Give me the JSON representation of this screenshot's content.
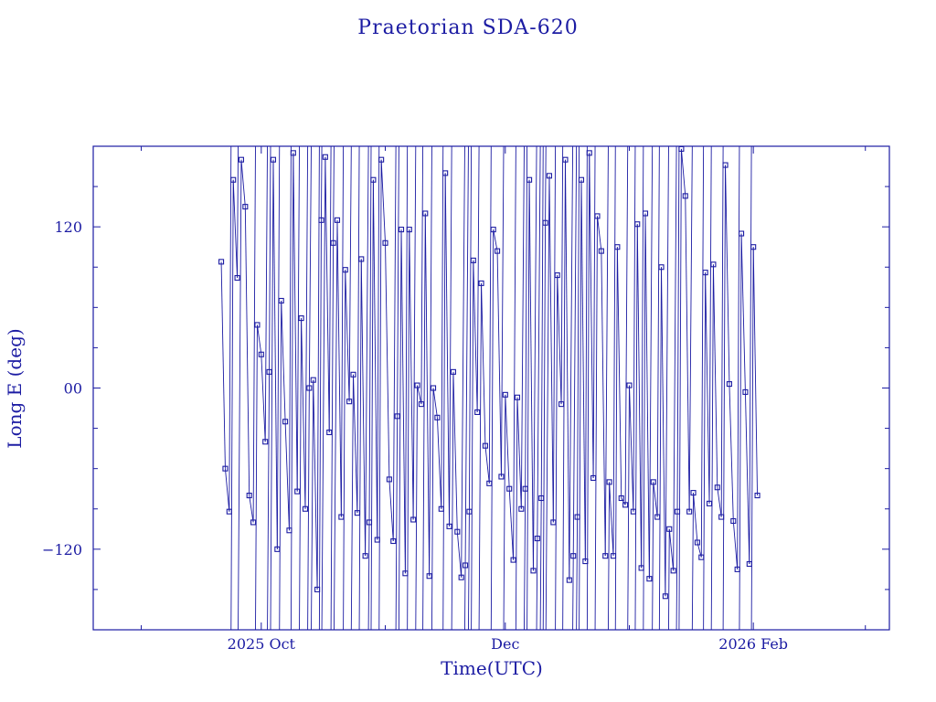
{
  "chart_data": {
    "type": "scatter",
    "title": "Praetorian SDA-620",
    "xlabel": "Time(UTC)",
    "ylabel": "Long E (deg)",
    "x_type": "date",
    "xlim": [
      "2025-08-20",
      "2026-03-07"
    ],
    "ylim": [
      -180,
      180
    ],
    "x_tick_labels": [
      {
        "date": "2025-10-01",
        "label": "2025 Oct"
      },
      {
        "date": "2025-12-01",
        "label": "Dec"
      },
      {
        "date": "2026-02-01",
        "label": "2026 Feb"
      }
    ],
    "x_minor_ticks": [
      "2025-09-01",
      "2025-11-01",
      "2026-01-01",
      "2026-03-01"
    ],
    "y_major_ticks": [
      {
        "value": 120,
        "label": "120"
      },
      {
        "value": 0,
        "label": "00"
      },
      {
        "value": -120,
        "label": "−120"
      }
    ],
    "y_minor_ticks": [
      150,
      90,
      60,
      30,
      -30,
      -60,
      -90,
      -150
    ],
    "grid": false,
    "marker": "square",
    "connected": true,
    "series": [
      {
        "x": [
          "2025-09-21",
          "2025-09-22",
          "2025-09-23",
          "2025-09-24",
          "2025-09-25",
          "2025-09-26",
          "2025-09-27",
          "2025-09-28",
          "2025-09-29",
          "2025-09-30",
          "2025-10-01",
          "2025-10-02",
          "2025-10-03",
          "2025-10-04",
          "2025-10-05",
          "2025-10-06",
          "2025-10-07",
          "2025-10-08",
          "2025-10-09",
          "2025-10-10",
          "2025-10-11",
          "2025-10-12",
          "2025-10-13",
          "2025-10-14",
          "2025-10-15",
          "2025-10-16",
          "2025-10-17",
          "2025-10-18",
          "2025-10-19",
          "2025-10-20",
          "2025-10-21",
          "2025-10-22",
          "2025-10-23",
          "2025-10-24",
          "2025-10-25",
          "2025-10-26",
          "2025-10-27",
          "2025-10-28",
          "2025-10-29",
          "2025-10-30",
          "2025-10-31",
          "2025-11-01",
          "2025-11-02",
          "2025-11-03",
          "2025-11-04",
          "2025-11-05",
          "2025-11-06",
          "2025-11-07",
          "2025-11-08",
          "2025-11-09",
          "2025-11-10",
          "2025-11-11",
          "2025-11-12",
          "2025-11-13",
          "2025-11-14",
          "2025-11-15",
          "2025-11-16",
          "2025-11-17",
          "2025-11-18",
          "2025-11-19",
          "2025-11-20",
          "2025-11-21",
          "2025-11-22",
          "2025-11-23",
          "2025-11-24",
          "2025-11-25",
          "2025-11-26",
          "2025-11-27",
          "2025-11-28",
          "2025-11-29",
          "2025-11-30",
          "2025-12-01",
          "2025-12-02",
          "2025-12-03",
          "2025-12-04",
          "2025-12-05",
          "2025-12-06",
          "2025-12-07",
          "2025-12-08",
          "2025-12-09",
          "2025-12-10",
          "2025-12-11",
          "2025-12-12",
          "2025-12-13",
          "2025-12-14",
          "2025-12-15",
          "2025-12-16",
          "2025-12-17",
          "2025-12-18",
          "2025-12-19",
          "2025-12-20",
          "2025-12-21",
          "2025-12-22",
          "2025-12-23",
          "2025-12-24",
          "2025-12-25",
          "2025-12-26",
          "2025-12-27",
          "2025-12-28",
          "2025-12-29",
          "2025-12-30",
          "2025-12-31",
          "2026-01-01",
          "2026-01-02",
          "2026-01-03",
          "2026-01-04",
          "2026-01-05",
          "2026-01-06",
          "2026-01-07",
          "2026-01-08",
          "2026-01-09",
          "2026-01-10",
          "2026-01-11",
          "2026-01-12",
          "2026-01-13",
          "2026-01-14",
          "2026-01-15",
          "2026-01-16",
          "2026-01-17",
          "2026-01-18",
          "2026-01-19",
          "2026-01-20",
          "2026-01-21",
          "2026-01-22",
          "2026-01-23",
          "2026-01-24",
          "2026-01-25",
          "2026-01-26",
          "2026-01-27",
          "2026-01-28",
          "2026-01-29",
          "2026-01-30",
          "2026-01-31",
          "2026-02-01",
          "2026-02-02"
        ],
        "y": [
          94,
          -60,
          -92,
          155,
          82,
          170,
          135,
          -80,
          -100,
          47,
          25,
          -40,
          12,
          170,
          -120,
          65,
          -25,
          -106,
          175,
          -77,
          52,
          -90,
          0,
          6,
          -150,
          125,
          172,
          -33,
          108,
          125,
          -96,
          88,
          -10,
          10,
          -93,
          96,
          -125,
          -100,
          155,
          -113,
          170,
          108,
          -68,
          -114,
          -21,
          118,
          -138,
          118,
          -98,
          2,
          -12,
          130,
          -140,
          0,
          -22,
          -90,
          160,
          -103,
          12,
          -107,
          -141,
          -132,
          -92,
          95,
          -18,
          78,
          -43,
          -71,
          118,
          102,
          -66,
          -5,
          -75,
          -128,
          -7,
          -90,
          -75,
          155,
          -136,
          -112,
          -82,
          123,
          158,
          -100,
          84,
          -12,
          170,
          -143,
          -125,
          -96,
          155,
          -129,
          175,
          -67,
          128,
          102,
          -125,
          -70,
          -125,
          105,
          -82,
          -87,
          2,
          -92,
          122,
          -134,
          130,
          -142,
          -70,
          -96,
          90,
          -155,
          -105,
          -136,
          -92,
          178,
          143,
          -92,
          -78,
          -115,
          -126,
          86,
          -86,
          92,
          -74,
          -96,
          166,
          3,
          -99,
          -135,
          115,
          -3,
          -131,
          105,
          -80
        ]
      }
    ]
  }
}
